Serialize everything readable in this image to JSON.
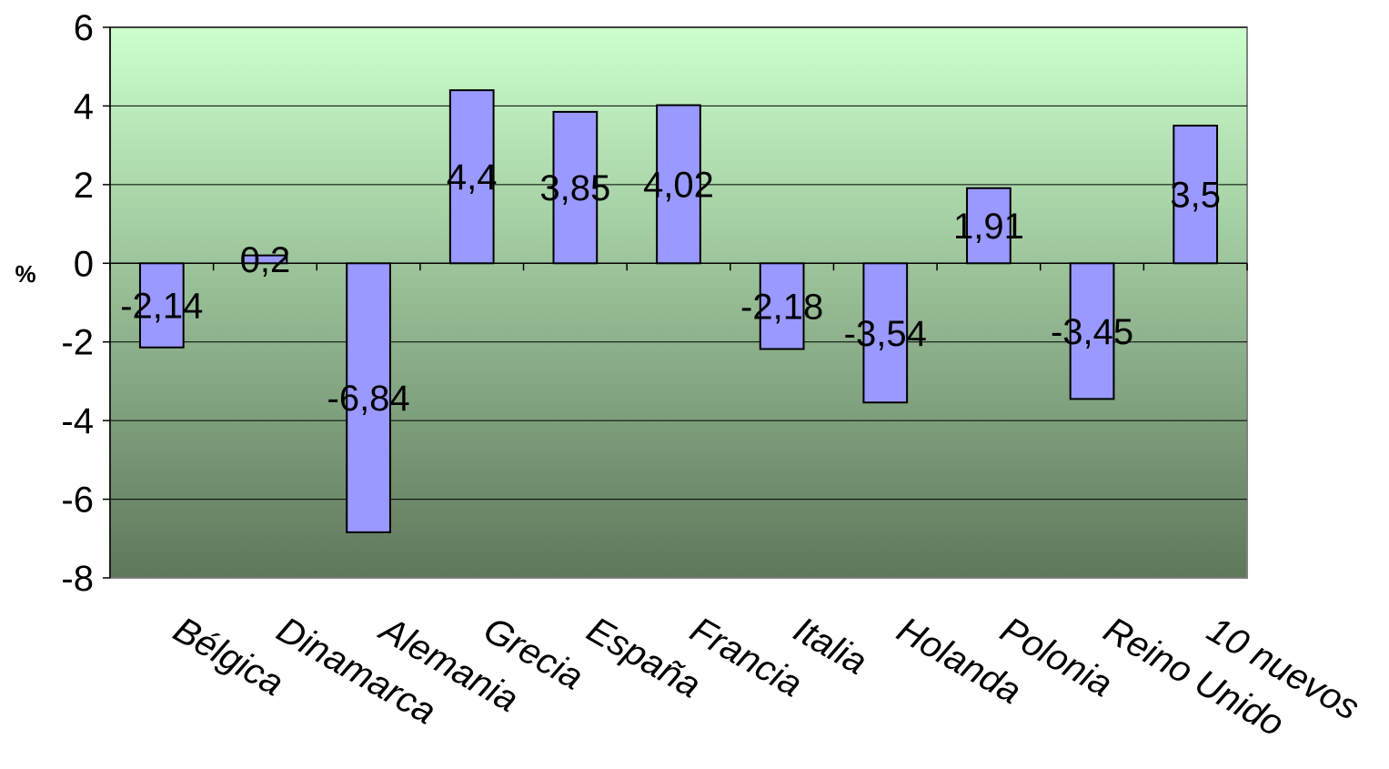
{
  "chart_data": {
    "type": "bar",
    "title": "",
    "xlabel": "",
    "ylabel": "%",
    "ylim": [
      -8,
      6
    ],
    "yticks": [
      6,
      4,
      2,
      0,
      -2,
      -4,
      -6,
      -8
    ],
    "grid": true,
    "categories": [
      "Bélgica",
      "Dinamarca",
      "Alemania",
      "Grecia",
      "España",
      "Francia",
      "Italia",
      "Holanda",
      "Polonia",
      "Reino Unido",
      "10 nuevos"
    ],
    "values": [
      -2.14,
      0.2,
      -6.84,
      4.4,
      3.85,
      4.02,
      -2.18,
      -3.54,
      1.91,
      -3.45,
      3.5
    ],
    "data_labels": [
      "-2,14",
      "0,2",
      "-6,84",
      "4,4",
      "3,85",
      "4,02",
      "-2,18",
      "-3,54",
      "1,91",
      "-3,45",
      "3,5"
    ],
    "bar_color": "#9999ff",
    "plot_gradient_top": "#ccffcc",
    "plot_gradient_bottom": "#5e775b"
  }
}
